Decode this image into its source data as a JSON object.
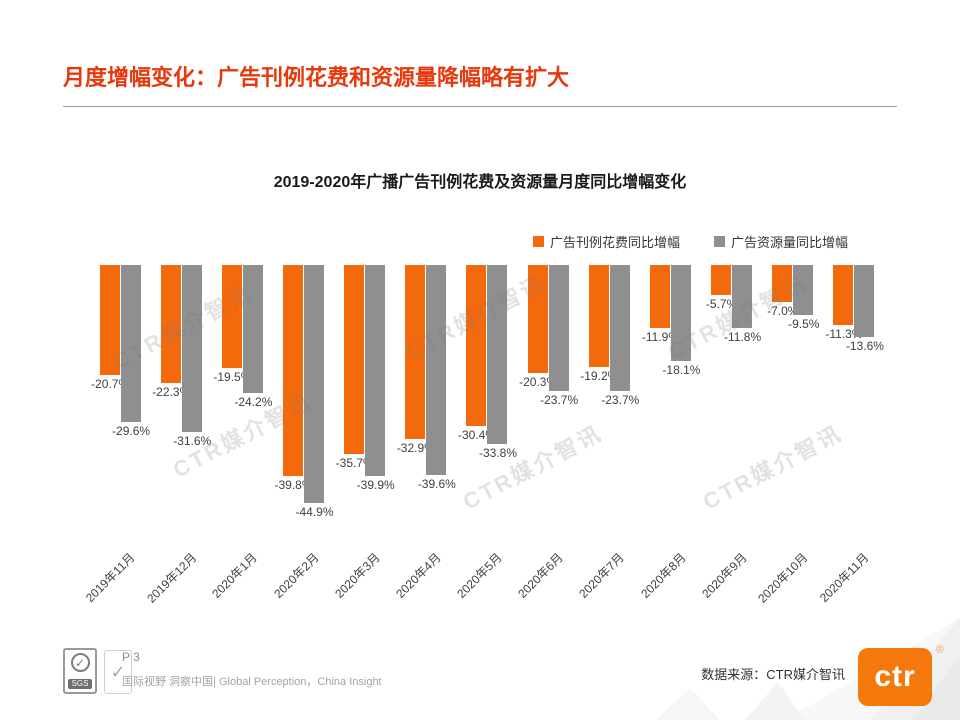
{
  "slide": {
    "title": "月度增幅变化：广告刊例花费和资源量降幅略有扩大",
    "accent_color": "#e8380d",
    "watermark": "CTR媒介智讯",
    "page_number": "P 3",
    "tagline": "国际视野 洞察中国| Global Perception，China Insight",
    "source": "数据来源：CTR媒介智讯",
    "logo": "ctr",
    "registered": "®",
    "sgs_label": "SGS"
  },
  "chart_data": {
    "type": "bar",
    "title": "2019-2020年广播广告刊例花费及资源量月度同比增幅变化",
    "categories": [
      "2019年11月",
      "2019年12月",
      "2020年1月",
      "2020年2月",
      "2020年3月",
      "2020年4月",
      "2020年5月",
      "2020年6月",
      "2020年7月",
      "2020年8月",
      "2020年9月",
      "2020年10月",
      "2020年11月"
    ],
    "series": [
      {
        "name": "广告刊例花费同比增幅",
        "color": "#f4690c",
        "values": [
          -20.7,
          -22.3,
          -19.5,
          -39.8,
          -35.7,
          -32.9,
          -30.4,
          -20.3,
          -19.2,
          -11.9,
          -5.7,
          -7.0,
          -11.3
        ]
      },
      {
        "name": "广告资源量同比增幅",
        "color": "#8f8f8f",
        "values": [
          -29.6,
          -31.6,
          -24.2,
          -44.9,
          -39.9,
          -39.6,
          -33.8,
          -23.7,
          -23.7,
          -18.1,
          -11.8,
          -9.5,
          -13.6
        ]
      }
    ],
    "value_suffix": "%",
    "ylim": [
      -50,
      0
    ],
    "grid": false,
    "legend_position": "top-right",
    "bars_direction": "down-from-top-baseline"
  }
}
